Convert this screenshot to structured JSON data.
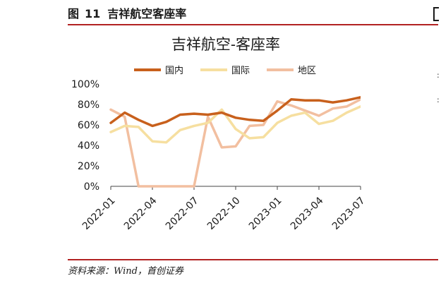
{
  "figure": {
    "label": "图",
    "number": "11",
    "title": "吉祥航空客座率"
  },
  "source": "资料来源：Wind，首创证券",
  "chart_data": {
    "type": "line",
    "title": "吉祥航空-客座率",
    "xlabel": "",
    "ylabel": "",
    "ylim": [
      0,
      100
    ],
    "y_ticks": [
      "0%",
      "20%",
      "40%",
      "60%",
      "80%",
      "100%"
    ],
    "x_tick_labels": [
      "2022-01",
      "2022-04",
      "2022-07",
      "2022-10",
      "2023-01",
      "2023-04",
      "2023-07"
    ],
    "legend_position": "top",
    "categories": [
      "2022-01",
      "2022-02",
      "2022-03",
      "2022-04",
      "2022-05",
      "2022-06",
      "2022-07",
      "2022-08",
      "2022-09",
      "2022-10",
      "2022-11",
      "2022-12",
      "2023-01",
      "2023-02",
      "2023-03",
      "2023-04",
      "2023-05",
      "2023-06",
      "2023-07"
    ],
    "series": [
      {
        "name": "国内",
        "color": "#c8601c",
        "values": [
          62,
          72,
          65,
          59,
          63,
          70,
          71,
          70,
          72,
          67,
          65,
          64,
          74,
          85,
          84,
          84,
          82,
          84,
          87
        ]
      },
      {
        "name": "国际",
        "color": "#f6dfa0",
        "values": [
          53,
          59,
          58,
          44,
          43,
          55,
          59,
          62,
          75,
          56,
          47,
          48,
          62,
          69,
          72,
          61,
          64,
          72,
          78
        ]
      },
      {
        "name": "地区",
        "color": "#f2bfa0",
        "values": [
          75,
          68,
          0,
          0,
          0,
          0,
          0,
          68,
          38,
          39,
          59,
          60,
          83,
          79,
          74,
          69,
          76,
          78,
          85
        ]
      }
    ]
  }
}
